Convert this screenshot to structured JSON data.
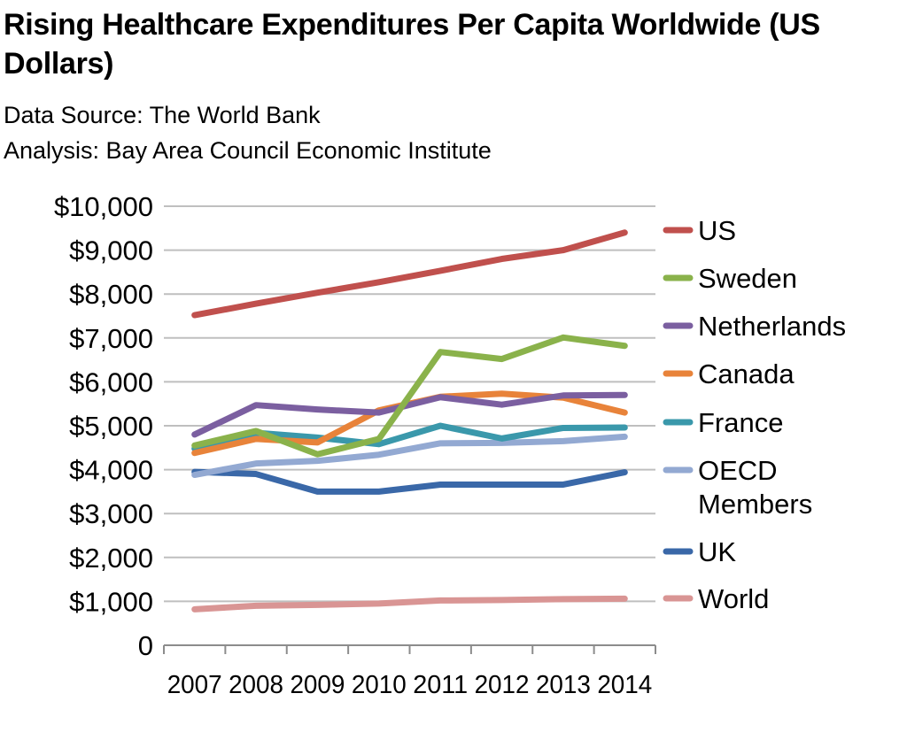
{
  "chart_data": {
    "type": "line",
    "title": "Rising Healthcare Expenditures Per Capita Worldwide (US Dollars)",
    "subtitle_lines": [
      "Data Source: The World Bank",
      "Analysis: Bay Area Council Economic Institute"
    ],
    "x": [
      "2007",
      "2008",
      "2009",
      "2010",
      "2011",
      "2012",
      "2013",
      "2014"
    ],
    "ylim": [
      0,
      10000
    ],
    "yticks": [
      0,
      1000,
      2000,
      3000,
      4000,
      5000,
      6000,
      7000,
      8000,
      9000,
      10000
    ],
    "ytick_labels": [
      "0",
      "$1,000",
      "$2,000",
      "$3,000",
      "$4,000",
      "$5,000",
      "$6,000",
      "$7,000",
      "$8,000",
      "$9,000",
      "$10,000"
    ],
    "grid": true,
    "legend_position": "right",
    "series": [
      {
        "name": "US",
        "color": "#c0504d",
        "values": [
          7520,
          7780,
          8030,
          8270,
          8530,
          8800,
          9000,
          9400
        ]
      },
      {
        "name": "Sweden",
        "color": "#8ab24b",
        "values": [
          4550,
          4880,
          4350,
          4700,
          6680,
          6520,
          7010,
          6820
        ]
      },
      {
        "name": "Netherlands",
        "color": "#7b5fa0",
        "values": [
          4800,
          5470,
          5370,
          5300,
          5650,
          5480,
          5690,
          5700
        ]
      },
      {
        "name": "Canada",
        "color": "#e8833a",
        "values": [
          4380,
          4700,
          4620,
          5350,
          5660,
          5730,
          5640,
          5300
        ]
      },
      {
        "name": "France",
        "color": "#3a98ab",
        "values": [
          4480,
          4840,
          4730,
          4580,
          5000,
          4710,
          4950,
          4960
        ]
      },
      {
        "name": "OECD Members",
        "legend_lines": [
          "OECD",
          "Members"
        ],
        "color": "#93a9d2",
        "values": [
          3880,
          4140,
          4200,
          4340,
          4600,
          4610,
          4650,
          4750
        ]
      },
      {
        "name": "UK",
        "color": "#3a68a8",
        "values": [
          3950,
          3900,
          3500,
          3500,
          3660,
          3660,
          3660,
          3940
        ]
      },
      {
        "name": "World",
        "color": "#d99594",
        "values": [
          820,
          900,
          920,
          950,
          1020,
          1030,
          1050,
          1060
        ]
      }
    ]
  }
}
